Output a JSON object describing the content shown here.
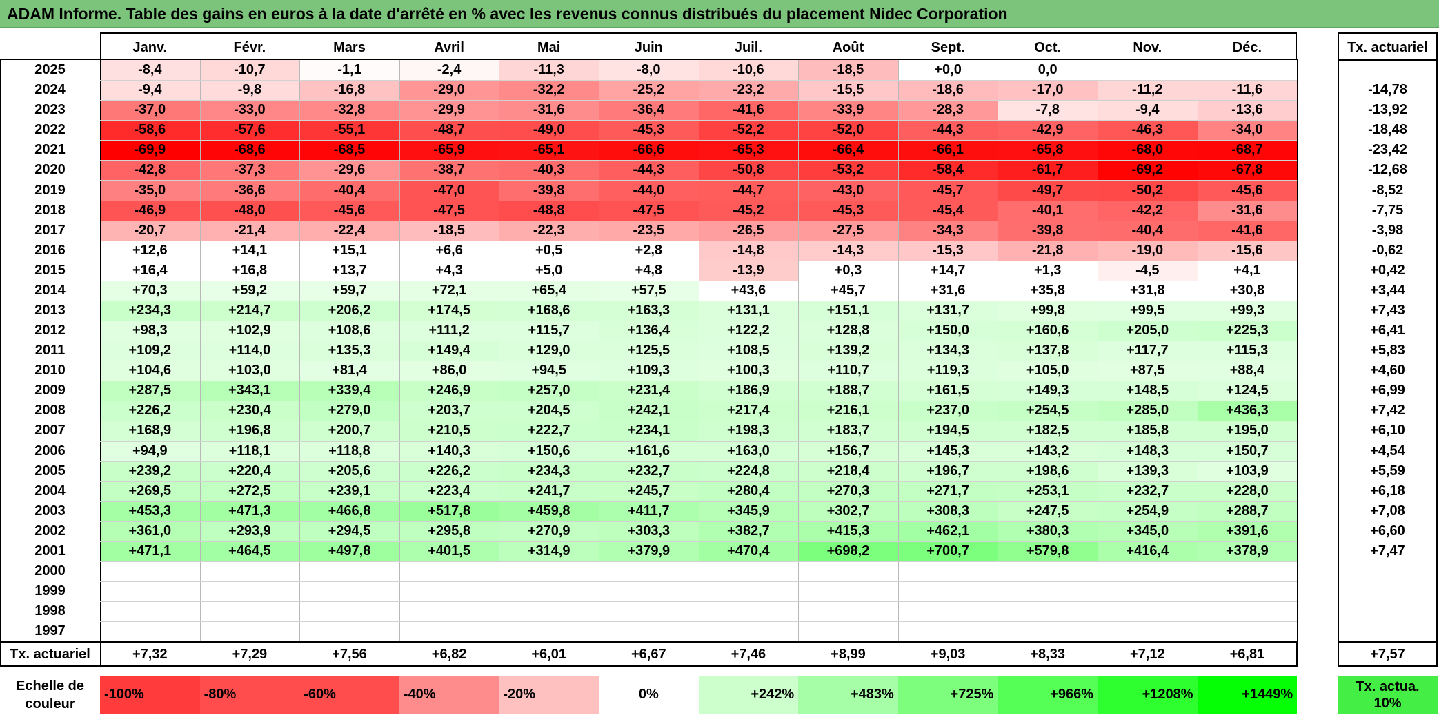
{
  "title": "ADAM Informe. Table des gains en euros à la date d'arrêté en % avec les revenus connus distribués du placement Nidec Corporation",
  "rate_header": "Tx. actuariel",
  "totals_label": "Tx. actuariel",
  "scale_label": "Echelle de couleur",
  "scale_rate_label": "Tx. actua. 10%",
  "colors": {
    "title_bg": "#7cc47c",
    "neg_max": "#ff0000",
    "pos_max": "#00ff00",
    "neutral": "#ffffff",
    "rate_swatch": "#44ee44"
  },
  "chart_data": {
    "type": "heatmap",
    "title": "ADAM Informe. Table des gains en euros à la date d'arrêté en % avec les revenus connus distribués du placement Nidec Corporation",
    "months": [
      "Janv.",
      "Févr.",
      "Mars",
      "Avril",
      "Mai",
      "Juin",
      "Juil.",
      "Août",
      "Sept.",
      "Oct.",
      "Nov.",
      "Déc."
    ],
    "rows": [
      {
        "year": "2025",
        "values": [
          "-8,4",
          "-10,7",
          "-1,1",
          "-2,4",
          "-11,3",
          "-8,0",
          "-10,6",
          "-18,5",
          "+0,0",
          "0,0",
          "",
          ""
        ],
        "rate": ""
      },
      {
        "year": "2024",
        "values": [
          "-9,4",
          "-9,8",
          "-16,8",
          "-29,0",
          "-32,2",
          "-25,2",
          "-23,2",
          "-15,5",
          "-18,6",
          "-17,0",
          "-11,2",
          "-11,6"
        ],
        "rate": "-14,78"
      },
      {
        "year": "2023",
        "values": [
          "-37,0",
          "-33,0",
          "-32,8",
          "-29,9",
          "-31,6",
          "-36,4",
          "-41,6",
          "-33,9",
          "-28,3",
          "-7,8",
          "-9,4",
          "-13,6"
        ],
        "rate": "-13,92"
      },
      {
        "year": "2022",
        "values": [
          "-58,6",
          "-57,6",
          "-55,1",
          "-48,7",
          "-49,0",
          "-45,3",
          "-52,2",
          "-52,0",
          "-44,3",
          "-42,9",
          "-46,3",
          "-34,0"
        ],
        "rate": "-18,48"
      },
      {
        "year": "2021",
        "values": [
          "-69,9",
          "-68,6",
          "-68,5",
          "-65,9",
          "-65,1",
          "-66,6",
          "-65,3",
          "-66,4",
          "-66,1",
          "-65,8",
          "-68,0",
          "-68,7"
        ],
        "rate": "-23,42"
      },
      {
        "year": "2020",
        "values": [
          "-42,8",
          "-37,3",
          "-29,6",
          "-38,7",
          "-40,3",
          "-44,3",
          "-50,8",
          "-53,2",
          "-58,4",
          "-61,7",
          "-69,2",
          "-67,8"
        ],
        "rate": "-12,68"
      },
      {
        "year": "2019",
        "values": [
          "-35,0",
          "-36,6",
          "-40,4",
          "-47,0",
          "-39,8",
          "-44,0",
          "-44,7",
          "-43,0",
          "-45,7",
          "-49,7",
          "-50,2",
          "-45,6"
        ],
        "rate": "-8,52"
      },
      {
        "year": "2018",
        "values": [
          "-46,9",
          "-48,0",
          "-45,6",
          "-47,5",
          "-48,8",
          "-47,5",
          "-45,2",
          "-45,3",
          "-45,4",
          "-40,1",
          "-42,2",
          "-31,6"
        ],
        "rate": "-7,75"
      },
      {
        "year": "2017",
        "values": [
          "-20,7",
          "-21,4",
          "-22,4",
          "-18,5",
          "-22,3",
          "-23,5",
          "-26,5",
          "-27,5",
          "-34,3",
          "-39,8",
          "-40,4",
          "-41,6"
        ],
        "rate": "-3,98"
      },
      {
        "year": "2016",
        "values": [
          "+12,6",
          "+14,1",
          "+15,1",
          "+6,6",
          "+0,5",
          "+2,8",
          "-14,8",
          "-14,3",
          "-15,3",
          "-21,8",
          "-19,0",
          "-15,6"
        ],
        "rate": "-0,62"
      },
      {
        "year": "2015",
        "values": [
          "+16,4",
          "+16,8",
          "+13,7",
          "+4,3",
          "+5,0",
          "+4,8",
          "-13,9",
          "+0,3",
          "+14,7",
          "+1,3",
          "-4,5",
          "+4,1"
        ],
        "rate": "+0,42"
      },
      {
        "year": "2014",
        "values": [
          "+70,3",
          "+59,2",
          "+59,7",
          "+72,1",
          "+65,4",
          "+57,5",
          "+43,6",
          "+45,7",
          "+31,6",
          "+35,8",
          "+31,8",
          "+30,8"
        ],
        "rate": "+3,44"
      },
      {
        "year": "2013",
        "values": [
          "+234,3",
          "+214,7",
          "+206,2",
          "+174,5",
          "+168,6",
          "+163,3",
          "+131,1",
          "+151,1",
          "+131,7",
          "+99,8",
          "+99,5",
          "+99,3"
        ],
        "rate": "+7,43"
      },
      {
        "year": "2012",
        "values": [
          "+98,3",
          "+102,9",
          "+108,6",
          "+111,2",
          "+115,7",
          "+136,4",
          "+122,2",
          "+128,8",
          "+150,0",
          "+160,6",
          "+205,0",
          "+225,3"
        ],
        "rate": "+6,41"
      },
      {
        "year": "2011",
        "values": [
          "+109,2",
          "+114,0",
          "+135,3",
          "+149,4",
          "+129,0",
          "+125,5",
          "+108,5",
          "+139,2",
          "+134,3",
          "+137,8",
          "+117,7",
          "+115,3"
        ],
        "rate": "+5,83"
      },
      {
        "year": "2010",
        "values": [
          "+104,6",
          "+103,0",
          "+81,4",
          "+86,0",
          "+94,5",
          "+109,3",
          "+100,3",
          "+110,7",
          "+119,3",
          "+105,0",
          "+87,5",
          "+88,4"
        ],
        "rate": "+4,60"
      },
      {
        "year": "2009",
        "values": [
          "+287,5",
          "+343,1",
          "+339,4",
          "+246,9",
          "+257,0",
          "+231,4",
          "+186,9",
          "+188,7",
          "+161,5",
          "+149,3",
          "+148,5",
          "+124,5"
        ],
        "rate": "+6,99"
      },
      {
        "year": "2008",
        "values": [
          "+226,2",
          "+230,4",
          "+279,0",
          "+203,7",
          "+204,5",
          "+242,1",
          "+217,4",
          "+216,1",
          "+237,0",
          "+254,5",
          "+285,0",
          "+436,3"
        ],
        "rate": "+7,42"
      },
      {
        "year": "2007",
        "values": [
          "+168,9",
          "+196,8",
          "+200,7",
          "+210,5",
          "+222,7",
          "+234,1",
          "+198,3",
          "+183,7",
          "+194,5",
          "+182,5",
          "+185,8",
          "+195,0"
        ],
        "rate": "+6,10"
      },
      {
        "year": "2006",
        "values": [
          "+94,9",
          "+118,1",
          "+118,8",
          "+140,3",
          "+150,6",
          "+161,6",
          "+163,0",
          "+156,7",
          "+145,3",
          "+143,2",
          "+148,3",
          "+150,7"
        ],
        "rate": "+4,54"
      },
      {
        "year": "2005",
        "values": [
          "+239,2",
          "+220,4",
          "+205,6",
          "+226,2",
          "+234,3",
          "+232,7",
          "+224,8",
          "+218,4",
          "+196,7",
          "+198,6",
          "+139,3",
          "+103,9"
        ],
        "rate": "+5,59"
      },
      {
        "year": "2004",
        "values": [
          "+269,5",
          "+272,5",
          "+239,1",
          "+223,4",
          "+241,7",
          "+245,7",
          "+280,4",
          "+270,3",
          "+271,7",
          "+253,1",
          "+232,7",
          "+228,0"
        ],
        "rate": "+6,18"
      },
      {
        "year": "2003",
        "values": [
          "+453,3",
          "+471,3",
          "+466,8",
          "+517,8",
          "+459,8",
          "+411,7",
          "+345,9",
          "+302,7",
          "+308,3",
          "+247,5",
          "+254,9",
          "+288,7"
        ],
        "rate": "+7,08"
      },
      {
        "year": "2002",
        "values": [
          "+361,0",
          "+293,9",
          "+294,5",
          "+295,8",
          "+270,9",
          "+303,3",
          "+382,7",
          "+415,3",
          "+462,1",
          "+380,3",
          "+345,0",
          "+391,6"
        ],
        "rate": "+6,60"
      },
      {
        "year": "2001",
        "values": [
          "+471,1",
          "+464,5",
          "+497,8",
          "+401,5",
          "+314,9",
          "+379,9",
          "+470,4",
          "+698,2",
          "+700,7",
          "+579,8",
          "+416,4",
          "+378,9"
        ],
        "rate": "+7,47"
      },
      {
        "year": "2000",
        "values": [
          "",
          "",
          "",
          "",
          "",
          "",
          "",
          "",
          "",
          "",
          "",
          ""
        ],
        "rate": ""
      },
      {
        "year": "1999",
        "values": [
          "",
          "",
          "",
          "",
          "",
          "",
          "",
          "",
          "",
          "",
          "",
          ""
        ],
        "rate": ""
      },
      {
        "year": "1998",
        "values": [
          "",
          "",
          "",
          "",
          "",
          "",
          "",
          "",
          "",
          "",
          "",
          ""
        ],
        "rate": ""
      },
      {
        "year": "1997",
        "values": [
          "",
          "",
          "",
          "",
          "",
          "",
          "",
          "",
          "",
          "",
          "",
          ""
        ],
        "rate": ""
      }
    ],
    "totals": [
      "+7,32",
      "+7,29",
      "+7,56",
      "+6,82",
      "+6,01",
      "+6,67",
      "+7,46",
      "+8,99",
      "+9,03",
      "+8,33",
      "+7,12",
      "+6,81"
    ],
    "total_rate": "+7,57",
    "color_scale": [
      {
        "label": "-100%",
        "value": -100
      },
      {
        "label": "-80%",
        "value": -80
      },
      {
        "label": "-60%",
        "value": -60
      },
      {
        "label": "-40%",
        "value": -40
      },
      {
        "label": "-20%",
        "value": -20
      },
      {
        "label": "0%",
        "value": 0
      },
      {
        "label": "+242%",
        "value": 242
      },
      {
        "label": "+483%",
        "value": 483
      },
      {
        "label": "+725%",
        "value": 725
      },
      {
        "label": "+966%",
        "value": 966
      },
      {
        "label": "+1208%",
        "value": 1208
      },
      {
        "label": "+1449%",
        "value": 1449
      }
    ]
  }
}
